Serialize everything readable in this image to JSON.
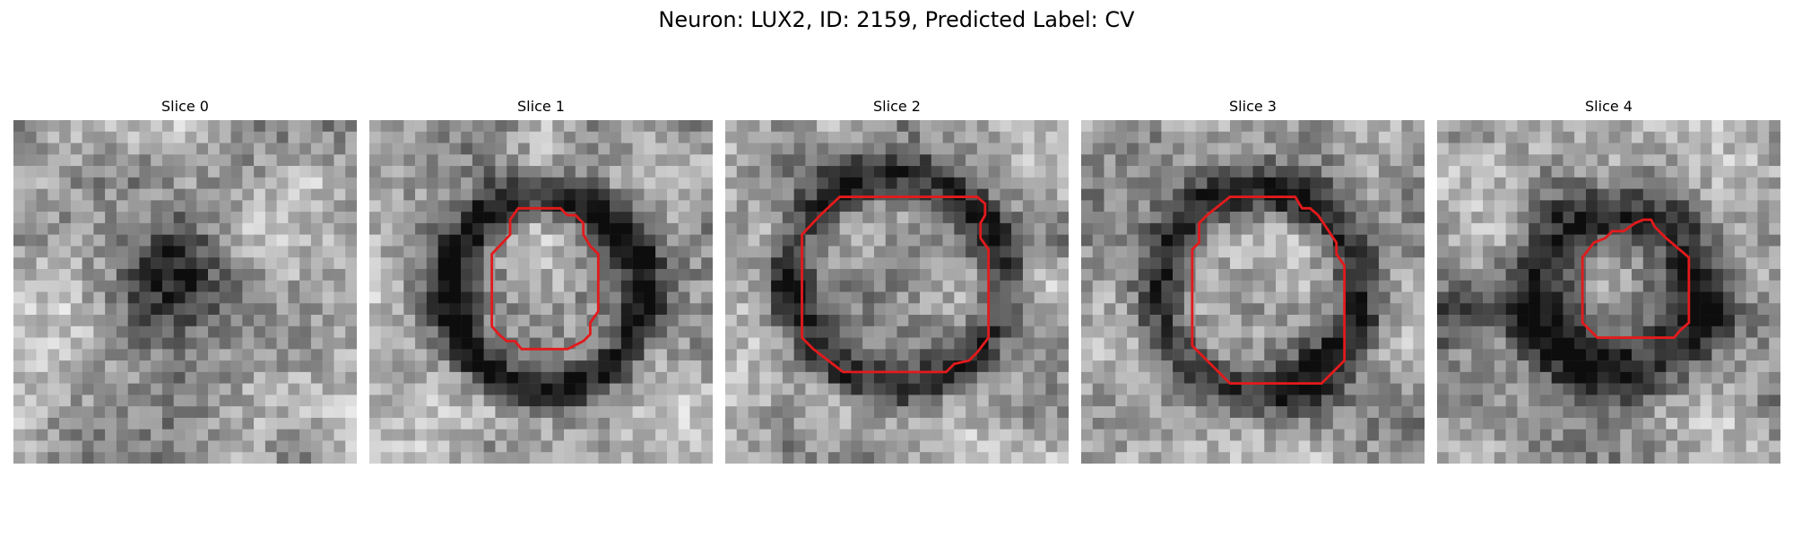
{
  "figure": {
    "title": "Neuron: LUX2, ID: 2159, Predicted Label: CV"
  },
  "panels": [
    {
      "title": "Slice 0",
      "has_contour": false
    },
    {
      "title": "Slice 1",
      "has_contour": true
    },
    {
      "title": "Slice 2",
      "has_contour": true
    },
    {
      "title": "Slice 3",
      "has_contour": true
    },
    {
      "title": "Slice 4",
      "has_contour": true
    }
  ],
  "colors": {
    "contour": "#e31a1c",
    "background": "#ffffff"
  },
  "colormap": "grayscale"
}
